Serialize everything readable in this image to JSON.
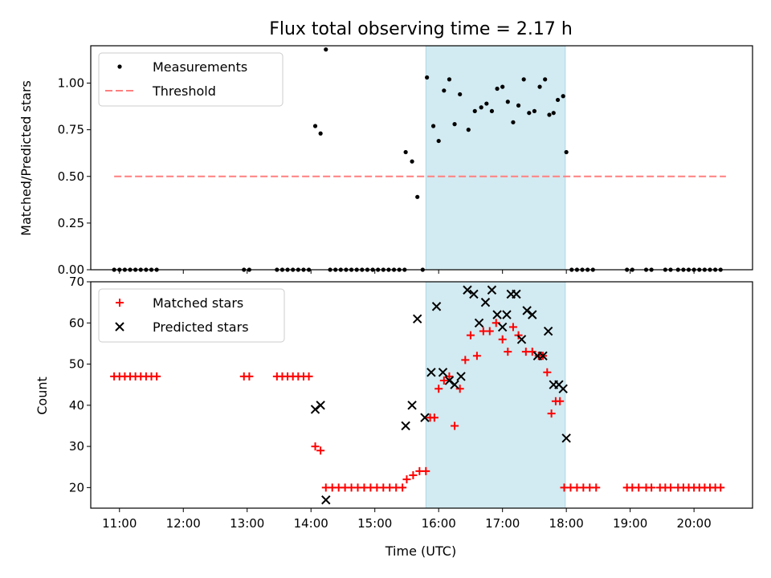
{
  "chart_data": [
    {
      "type": "scatter",
      "title": "Flux total observing time = 2.17 h",
      "xlabel": "",
      "ylabel": "Matched/Predicted stars",
      "ylim": [
        0,
        1.2
      ],
      "xlim": [
        "10:33",
        "20:55"
      ],
      "yticks": [
        "0.00",
        "0.25",
        "0.50",
        "0.75",
        "1.00"
      ],
      "shaded_region": {
        "from": "15:48",
        "to": "17:59",
        "color": "#add8e6"
      },
      "legend_position": "top-left",
      "legend": [
        "Measurements",
        "Threshold"
      ],
      "threshold": {
        "name": "Threshold",
        "y": 0.5,
        "x_from": "10:55",
        "x_to": "20:30",
        "color": "#ff7f7f",
        "style": "dashed"
      },
      "series": [
        {
          "name": "Measurements",
          "color": "#000000",
          "points": [
            [
              "10:55",
              0
            ],
            [
              "11:00",
              0
            ],
            [
              "11:05",
              0
            ],
            [
              "11:10",
              0
            ],
            [
              "11:15",
              0
            ],
            [
              "11:20",
              0
            ],
            [
              "11:25",
              0
            ],
            [
              "11:30",
              0
            ],
            [
              "11:35",
              0
            ],
            [
              "12:57",
              0
            ],
            [
              "13:02",
              0
            ],
            [
              "13:28",
              0
            ],
            [
              "13:33",
              0
            ],
            [
              "13:38",
              0
            ],
            [
              "13:43",
              0
            ],
            [
              "13:48",
              0
            ],
            [
              "13:53",
              0
            ],
            [
              "13:58",
              0
            ],
            [
              "14:04",
              0.77
            ],
            [
              "14:09",
              0.73
            ],
            [
              "14:14",
              1.18
            ],
            [
              "14:18",
              0
            ],
            [
              "14:23",
              0
            ],
            [
              "14:28",
              0
            ],
            [
              "14:33",
              0
            ],
            [
              "14:38",
              0
            ],
            [
              "14:43",
              0
            ],
            [
              "14:48",
              0
            ],
            [
              "14:53",
              0
            ],
            [
              "14:58",
              0
            ],
            [
              "15:03",
              0
            ],
            [
              "15:08",
              0
            ],
            [
              "15:13",
              0
            ],
            [
              "15:18",
              0
            ],
            [
              "15:23",
              0
            ],
            [
              "15:28",
              0
            ],
            [
              "15:29",
              0.63
            ],
            [
              "15:35",
              0.58
            ],
            [
              "15:40",
              0.39
            ],
            [
              "15:45",
              0
            ],
            [
              "15:49",
              1.03
            ],
            [
              "15:55",
              0.77
            ],
            [
              "16:00",
              0.69
            ],
            [
              "16:05",
              0.96
            ],
            [
              "16:10",
              1.02
            ],
            [
              "16:15",
              0.78
            ],
            [
              "16:20",
              0.94
            ],
            [
              "16:28",
              0.75
            ],
            [
              "16:34",
              0.85
            ],
            [
              "16:40",
              0.87
            ],
            [
              "16:45",
              0.89
            ],
            [
              "16:50",
              0.85
            ],
            [
              "16:55",
              0.97
            ],
            [
              "17:00",
              0.98
            ],
            [
              "17:05",
              0.9
            ],
            [
              "17:10",
              0.79
            ],
            [
              "17:15",
              0.88
            ],
            [
              "17:20",
              1.02
            ],
            [
              "17:25",
              0.84
            ],
            [
              "17:30",
              0.85
            ],
            [
              "17:35",
              0.98
            ],
            [
              "17:40",
              1.02
            ],
            [
              "17:44",
              0.83
            ],
            [
              "17:48",
              0.84
            ],
            [
              "17:52",
              0.91
            ],
            [
              "17:57",
              0.93
            ],
            [
              "18:00",
              0.63
            ],
            [
              "18:05",
              0
            ],
            [
              "18:10",
              0
            ],
            [
              "18:15",
              0
            ],
            [
              "18:20",
              0
            ],
            [
              "18:25",
              0
            ],
            [
              "18:57",
              0
            ],
            [
              "19:02",
              0
            ],
            [
              "19:15",
              0
            ],
            [
              "19:20",
              0
            ],
            [
              "19:33",
              0
            ],
            [
              "19:38",
              0
            ],
            [
              "19:45",
              0
            ],
            [
              "19:50",
              0
            ],
            [
              "19:55",
              0
            ],
            [
              "20:00",
              0
            ],
            [
              "20:05",
              0
            ],
            [
              "20:10",
              0
            ],
            [
              "20:15",
              0
            ],
            [
              "20:20",
              0
            ],
            [
              "20:25",
              0
            ]
          ]
        }
      ]
    },
    {
      "type": "scatter",
      "title": "",
      "xlabel": "Time (UTC)",
      "ylabel": "Count",
      "ylim": [
        15,
        70
      ],
      "xlim": [
        "10:33",
        "20:55"
      ],
      "yticks": [
        "20",
        "30",
        "40",
        "50",
        "60",
        "70"
      ],
      "xticks": [
        "11:00",
        "12:00",
        "13:00",
        "14:00",
        "15:00",
        "16:00",
        "17:00",
        "18:00",
        "19:00",
        "20:00"
      ],
      "shaded_region": {
        "from": "15:48",
        "to": "17:59",
        "color": "#add8e6"
      },
      "legend_position": "top-left",
      "legend": [
        "Matched stars",
        "Predicted stars"
      ],
      "series": [
        {
          "name": "Matched stars",
          "color": "#ff0000",
          "marker": "+",
          "points": [
            [
              "10:55",
              47
            ],
            [
              "11:00",
              47
            ],
            [
              "11:05",
              47
            ],
            [
              "11:10",
              47
            ],
            [
              "11:15",
              47
            ],
            [
              "11:20",
              47
            ],
            [
              "11:25",
              47
            ],
            [
              "11:30",
              47
            ],
            [
              "11:35",
              47
            ],
            [
              "12:57",
              47
            ],
            [
              "13:02",
              47
            ],
            [
              "13:28",
              47
            ],
            [
              "13:33",
              47
            ],
            [
              "13:38",
              47
            ],
            [
              "13:43",
              47
            ],
            [
              "13:48",
              47
            ],
            [
              "13:53",
              47
            ],
            [
              "13:58",
              47
            ],
            [
              "14:04",
              30
            ],
            [
              "14:09",
              29
            ],
            [
              "14:14",
              20
            ],
            [
              "14:20",
              20
            ],
            [
              "14:26",
              20
            ],
            [
              "14:32",
              20
            ],
            [
              "14:38",
              20
            ],
            [
              "14:44",
              20
            ],
            [
              "14:50",
              20
            ],
            [
              "14:56",
              20
            ],
            [
              "15:02",
              20
            ],
            [
              "15:08",
              20
            ],
            [
              "15:14",
              20
            ],
            [
              "15:20",
              20
            ],
            [
              "15:26",
              20
            ],
            [
              "15:30",
              22
            ],
            [
              "15:36",
              23
            ],
            [
              "15:42",
              24
            ],
            [
              "15:48",
              24
            ],
            [
              "15:52",
              37
            ],
            [
              "15:56",
              37
            ],
            [
              "16:00",
              44
            ],
            [
              "16:05",
              46
            ],
            [
              "16:10",
              47
            ],
            [
              "16:15",
              35
            ],
            [
              "16:20",
              44
            ],
            [
              "16:25",
              51
            ],
            [
              "16:30",
              57
            ],
            [
              "16:36",
              52
            ],
            [
              "16:42",
              58
            ],
            [
              "16:48",
              58
            ],
            [
              "16:54",
              60
            ],
            [
              "17:00",
              56
            ],
            [
              "17:05",
              53
            ],
            [
              "17:10",
              59
            ],
            [
              "17:15",
              57
            ],
            [
              "17:22",
              53
            ],
            [
              "17:28",
              53
            ],
            [
              "17:34",
              52
            ],
            [
              "17:38",
              52
            ],
            [
              "17:42",
              48
            ],
            [
              "17:46",
              38
            ],
            [
              "17:50",
              41
            ],
            [
              "17:54",
              41
            ],
            [
              "17:58",
              20
            ],
            [
              "18:04",
              20
            ],
            [
              "18:10",
              20
            ],
            [
              "18:16",
              20
            ],
            [
              "18:22",
              20
            ],
            [
              "18:28",
              20
            ],
            [
              "18:57",
              20
            ],
            [
              "19:02",
              20
            ],
            [
              "19:08",
              20
            ],
            [
              "19:15",
              20
            ],
            [
              "19:20",
              20
            ],
            [
              "19:28",
              20
            ],
            [
              "19:33",
              20
            ],
            [
              "19:38",
              20
            ],
            [
              "19:45",
              20
            ],
            [
              "19:50",
              20
            ],
            [
              "19:55",
              20
            ],
            [
              "20:00",
              20
            ],
            [
              "20:05",
              20
            ],
            [
              "20:10",
              20
            ],
            [
              "20:15",
              20
            ],
            [
              "20:20",
              20
            ],
            [
              "20:25",
              20
            ]
          ]
        },
        {
          "name": "Predicted stars",
          "color": "#000000",
          "marker": "x",
          "points": [
            [
              "14:04",
              39
            ],
            [
              "14:09",
              40
            ],
            [
              "14:14",
              17
            ],
            [
              "15:29",
              35
            ],
            [
              "15:35",
              40
            ],
            [
              "15:40",
              61
            ],
            [
              "15:47",
              37
            ],
            [
              "15:53",
              48
            ],
            [
              "15:58",
              64
            ],
            [
              "16:04",
              48
            ],
            [
              "16:10",
              46
            ],
            [
              "16:15",
              45
            ],
            [
              "16:21",
              47
            ],
            [
              "16:27",
              68
            ],
            [
              "16:33",
              67
            ],
            [
              "16:38",
              60
            ],
            [
              "16:44",
              65
            ],
            [
              "16:50",
              68
            ],
            [
              "16:55",
              62
            ],
            [
              "17:00",
              59
            ],
            [
              "17:04",
              62
            ],
            [
              "17:08",
              67
            ],
            [
              "17:13",
              67
            ],
            [
              "17:18",
              56
            ],
            [
              "17:23",
              63
            ],
            [
              "17:28",
              62
            ],
            [
              "17:33",
              52
            ],
            [
              "17:38",
              52
            ],
            [
              "17:43",
              58
            ],
            [
              "17:48",
              45
            ],
            [
              "17:53",
              45
            ],
            [
              "17:57",
              44
            ],
            [
              "18:00",
              32
            ]
          ]
        }
      ]
    }
  ]
}
